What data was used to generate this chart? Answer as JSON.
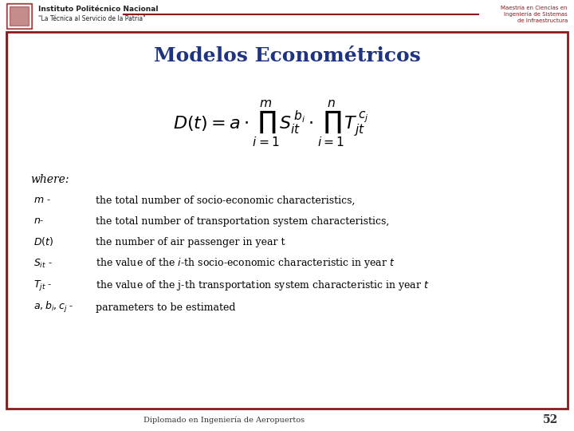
{
  "title": "Modelos Econométricos",
  "title_color": "#1F3480",
  "title_fontsize": 18,
  "bg_color": "#FFFFFF",
  "border_color": "#8B1A1A",
  "footer_text": "Diplomado en Ingeniería de Aeropuertos",
  "page_number": "52",
  "formula": "D(t) = a \\cdot \\prod_{i=1}^{m} S_{it}^{\\,b_i} \\cdot \\prod_{i=1}^{n} T_{jt}^{\\,c_j}",
  "where_items": [
    {
      "label": "$m$ -",
      "desc": "the total number of socio-economic characteristics,"
    },
    {
      "label": "$n$-",
      "desc": "the total number of transportation system characteristics,"
    },
    {
      "label": "$D(t)$",
      "desc": "the number of air passenger in year t"
    },
    {
      "label": "$S_{it}$ -",
      "desc": "the value of the $i$-th socio-economic characteristic in year $t$"
    },
    {
      "label": "$T_{jt}$ -",
      "desc": "the value of the j-th transportation system characteristic in year $t$"
    },
    {
      "label": "$a, b_i, c_j$ -",
      "desc": "parameters to be estimated"
    }
  ],
  "text_color": "#000000",
  "body_fontsize": 9,
  "footer_fontsize": 7,
  "header_bar_color": "#8B1A1A",
  "ipn_name": "Instituto Politécnico Nacional",
  "ipn_sub": "\"La Técnica al Servicio de la Patria\"",
  "right_header_text": "Maestría en Ciencias en\nIngeniería de Sistemas\nde Infraestructura"
}
